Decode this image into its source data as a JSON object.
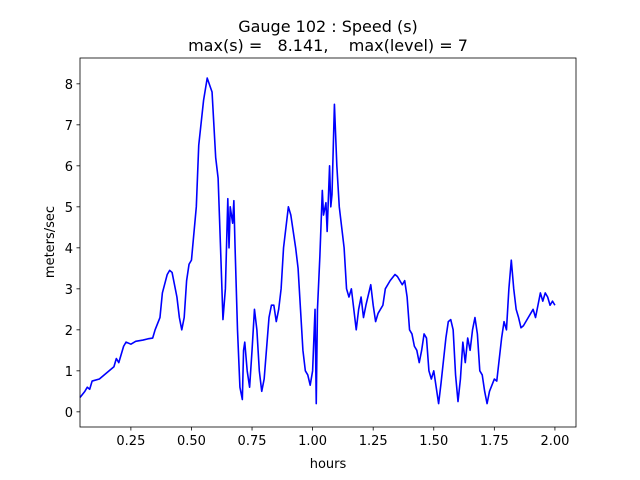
{
  "chart_data": {
    "type": "line",
    "title": "Gauge 102 : Speed (s)",
    "subtitle": "max(s) =   8.141,    max(level) = 7",
    "xlabel": "hours",
    "ylabel": "meters/sec",
    "color": "#0000ff",
    "x": [
      0.04,
      0.06,
      0.07,
      0.08,
      0.09,
      0.12,
      0.15,
      0.18,
      0.19,
      0.2,
      0.22,
      0.23,
      0.25,
      0.27,
      0.3,
      0.32,
      0.34,
      0.35,
      0.37,
      0.38,
      0.4,
      0.41,
      0.42,
      0.44,
      0.45,
      0.46,
      0.47,
      0.48,
      0.49,
      0.5,
      0.52,
      0.53,
      0.55,
      0.565,
      0.585,
      0.6,
      0.61,
      0.62,
      0.63,
      0.64,
      0.65,
      0.655,
      0.66,
      0.67,
      0.675,
      0.68,
      0.69,
      0.7,
      0.71,
      0.715,
      0.72,
      0.73,
      0.74,
      0.75,
      0.76,
      0.77,
      0.78,
      0.79,
      0.8,
      0.82,
      0.83,
      0.84,
      0.85,
      0.86,
      0.87,
      0.88,
      0.89,
      0.9,
      0.91,
      0.93,
      0.94,
      0.95,
      0.96,
      0.97,
      0.98,
      0.99,
      1.0,
      1.01,
      1.015,
      1.02,
      1.03,
      1.04,
      1.045,
      1.055,
      1.06,
      1.07,
      1.075,
      1.08,
      1.09,
      1.1,
      1.11,
      1.12,
      1.13,
      1.14,
      1.15,
      1.16,
      1.17,
      1.18,
      1.19,
      1.2,
      1.21,
      1.22,
      1.24,
      1.25,
      1.26,
      1.27,
      1.29,
      1.3,
      1.32,
      1.34,
      1.35,
      1.37,
      1.38,
      1.39,
      1.4,
      1.41,
      1.42,
      1.43,
      1.44,
      1.45,
      1.46,
      1.47,
      1.48,
      1.49,
      1.5,
      1.51,
      1.52,
      1.53,
      1.55,
      1.56,
      1.57,
      1.58,
      1.59,
      1.6,
      1.61,
      1.62,
      1.63,
      1.64,
      1.65,
      1.66,
      1.67,
      1.68,
      1.69,
      1.7,
      1.71,
      1.72,
      1.73,
      1.75,
      1.76,
      1.78,
      1.79,
      1.8,
      1.81,
      1.82,
      1.83,
      1.84,
      1.85,
      1.86,
      1.87,
      1.89,
      1.91,
      1.92,
      1.93,
      1.94,
      1.95,
      1.96,
      1.97,
      1.98,
      1.99,
      2.0
    ],
    "values": [
      0.35,
      0.5,
      0.6,
      0.55,
      0.75,
      0.8,
      0.95,
      1.1,
      1.3,
      1.2,
      1.6,
      1.7,
      1.65,
      1.72,
      1.75,
      1.78,
      1.8,
      2.0,
      2.3,
      2.9,
      3.35,
      3.45,
      3.4,
      2.8,
      2.3,
      2.0,
      2.3,
      3.2,
      3.6,
      3.7,
      5.0,
      6.5,
      7.6,
      8.14,
      7.8,
      6.2,
      5.7,
      4.0,
      2.25,
      3.0,
      5.2,
      4.0,
      5.0,
      4.6,
      5.15,
      4.0,
      2.0,
      0.6,
      0.3,
      1.5,
      1.7,
      1.0,
      0.6,
      1.5,
      2.5,
      2.0,
      1.0,
      0.5,
      0.8,
      2.3,
      2.6,
      2.6,
      2.2,
      2.5,
      3.0,
      4.0,
      4.5,
      5.0,
      4.8,
      4.0,
      3.5,
      2.5,
      1.5,
      1.0,
      0.9,
      0.65,
      1.0,
      2.5,
      0.2,
      2.5,
      3.8,
      5.4,
      4.8,
      5.1,
      4.4,
      6.0,
      5.0,
      5.3,
      7.5,
      6.0,
      5.0,
      4.5,
      4.0,
      3.0,
      2.8,
      3.0,
      2.5,
      2.0,
      2.5,
      2.8,
      2.3,
      2.6,
      3.1,
      2.6,
      2.2,
      2.4,
      2.6,
      3.0,
      3.2,
      3.35,
      3.3,
      3.1,
      3.2,
      2.8,
      2.0,
      1.9,
      1.6,
      1.5,
      1.2,
      1.5,
      1.9,
      1.8,
      1.0,
      0.8,
      1.0,
      0.6,
      0.2,
      0.7,
      1.8,
      2.2,
      2.25,
      2.0,
      0.9,
      0.25,
      0.8,
      1.7,
      1.2,
      1.8,
      1.5,
      2.0,
      2.3,
      1.9,
      1.0,
      0.9,
      0.5,
      0.2,
      0.5,
      0.8,
      0.75,
      1.8,
      2.2,
      2.0,
      3.0,
      3.7,
      3.0,
      2.5,
      2.3,
      2.05,
      2.1,
      2.3,
      2.5,
      2.3,
      2.6,
      2.9,
      2.7,
      2.9,
      2.8,
      2.6,
      2.7,
      2.6
    ],
    "xlim": [
      0.04,
      2.087
    ],
    "ylim": [
      -0.37,
      8.63
    ],
    "xticks": [
      0.25,
      {
        "value": 0.5,
        "label": "0.50"
      },
      0.75,
      {
        "value": 1.0,
        "label": "1.00"
      },
      1.25,
      {
        "value": 1.5,
        "label": "1.50"
      },
      1.75,
      {
        "value": 2.0,
        "label": "2.00"
      }
    ],
    "yticks": [
      0,
      1,
      2,
      3,
      4,
      5,
      6,
      7,
      8
    ]
  }
}
